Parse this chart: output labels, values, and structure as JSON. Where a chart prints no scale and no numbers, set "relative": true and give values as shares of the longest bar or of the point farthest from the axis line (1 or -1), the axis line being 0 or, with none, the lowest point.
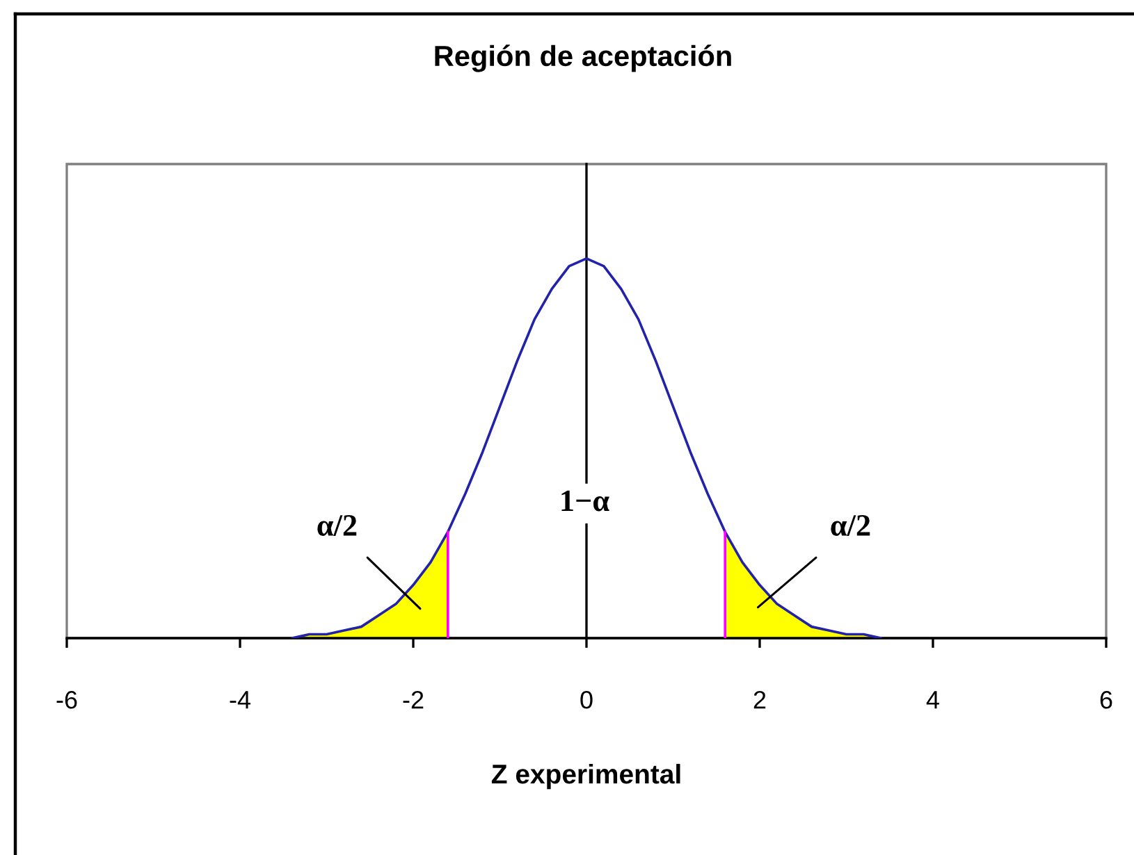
{
  "chart_data": {
    "type": "line",
    "title": "Región de aceptación",
    "xlabel": "Z experimental",
    "relative": true,
    "line_style": "solid",
    "xlim": [
      -6,
      6
    ],
    "xticks": [
      -6,
      -4,
      -2,
      0,
      2,
      4,
      6
    ],
    "series": [
      {
        "type": "area",
        "color": "#ffff00",
        "x": [
          -3.4,
          -3.2,
          -3.0,
          -2.8,
          -2.6,
          -2.4,
          -2.2,
          -2.0,
          -1.8,
          -1.6
        ],
        "values": [
          0.0,
          0.01,
          0.01,
          0.02,
          0.03,
          0.06,
          0.09,
          0.14,
          0.2,
          0.28
        ]
      },
      {
        "type": "area",
        "color": "#ffff00",
        "x": [
          1.6,
          1.8,
          2.0,
          2.2,
          2.4,
          2.6,
          2.8,
          3.0,
          3.2,
          3.4
        ],
        "values": [
          0.28,
          0.2,
          0.14,
          0.09,
          0.06,
          0.03,
          0.02,
          0.01,
          0.01,
          0.0
        ]
      },
      {
        "color": "#2222aa",
        "x": [
          -3.4,
          -3.2,
          -3.0,
          -2.8,
          -2.6,
          -2.4,
          -2.2,
          -2.0,
          -1.8,
          -1.6,
          -1.4,
          -1.2,
          -1.0,
          -0.8,
          -0.6,
          -0.4,
          -0.2,
          0.0,
          0.2,
          0.4,
          0.6,
          0.8,
          1.0,
          1.2,
          1.4,
          1.6,
          1.8,
          2.0,
          2.2,
          2.4,
          2.6,
          2.8,
          3.0,
          3.2,
          3.4
        ],
        "values": [
          0.0,
          0.01,
          0.01,
          0.02,
          0.03,
          0.06,
          0.09,
          0.14,
          0.2,
          0.28,
          0.38,
          0.49,
          0.61,
          0.73,
          0.84,
          0.92,
          0.98,
          1.0,
          0.98,
          0.92,
          0.84,
          0.73,
          0.61,
          0.49,
          0.38,
          0.28,
          0.2,
          0.14,
          0.09,
          0.06,
          0.03,
          0.02,
          0.01,
          0.01,
          0.0
        ]
      },
      {
        "color": "#ff00ff",
        "x": [
          -1.6,
          -1.6
        ],
        "values": [
          0.0,
          0.28
        ]
      },
      {
        "color": "#ff00ff",
        "x": [
          1.6,
          1.6
        ],
        "values": [
          0.0,
          0.28
        ]
      }
    ],
    "annotations": [
      "α/2",
      "1−α",
      "α/2"
    ]
  }
}
